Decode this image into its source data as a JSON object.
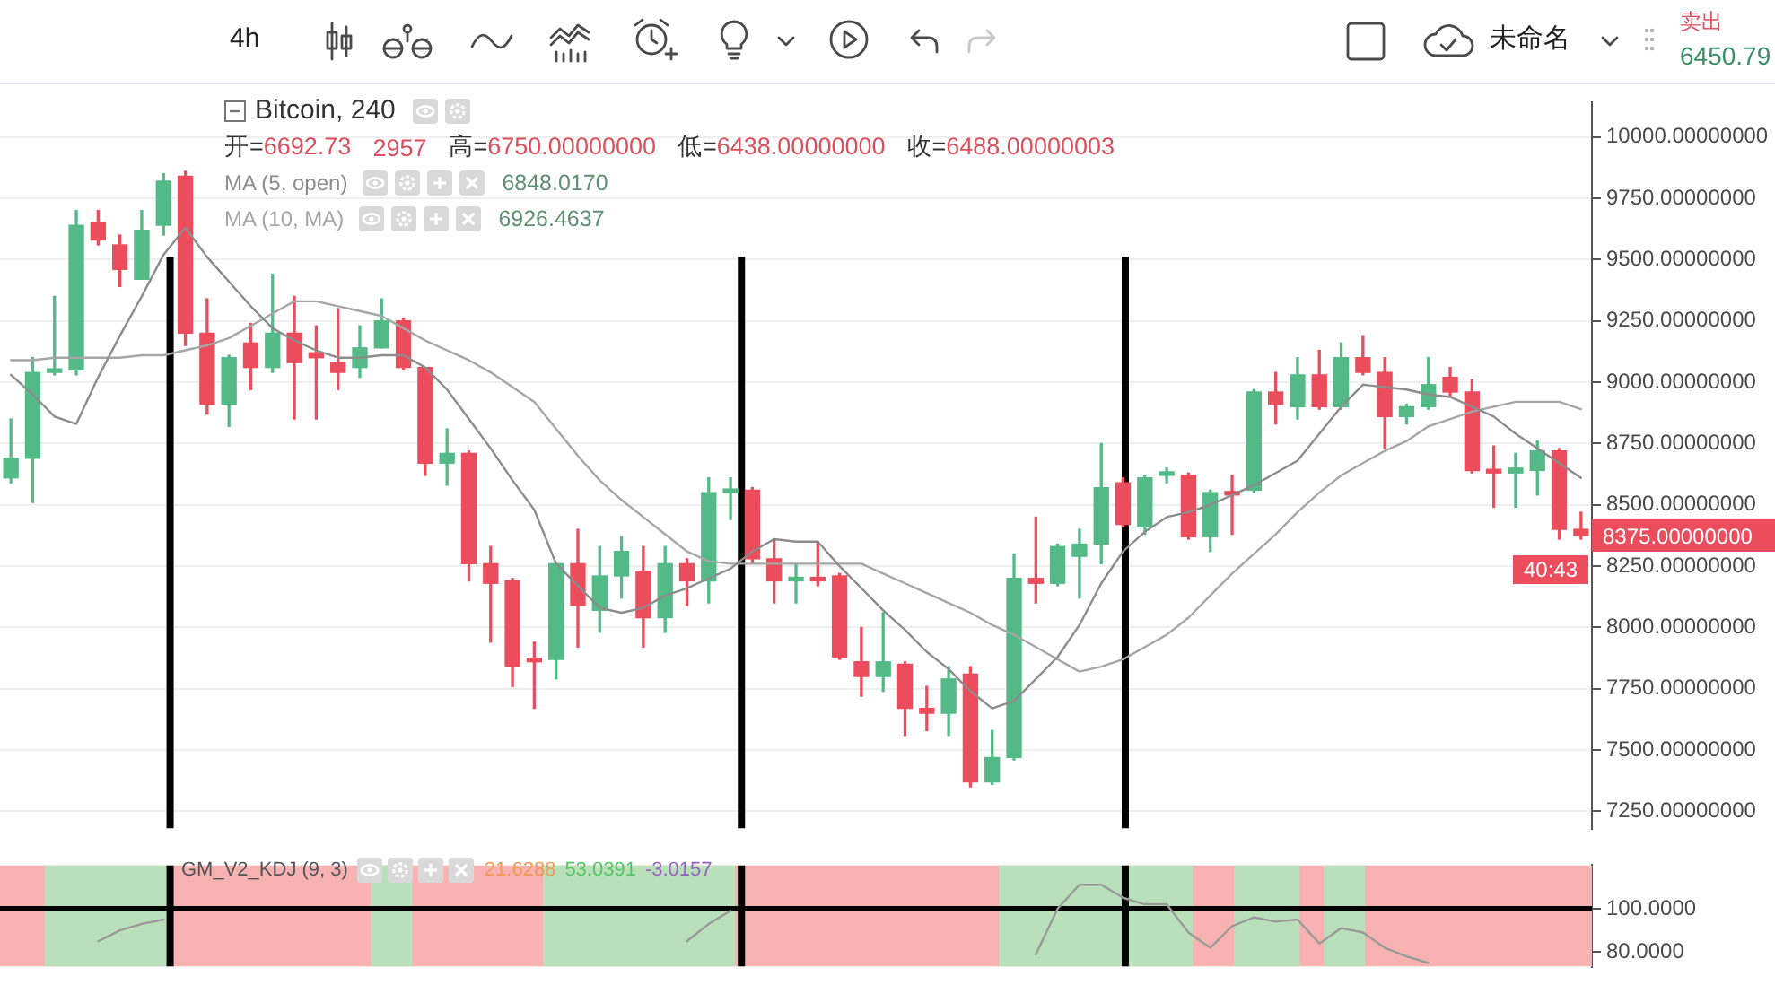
{
  "chart_data": [
    {
      "type": "other",
      "annotations": [
        "4h",
        "未命名",
        "卖出",
        "6450.79"
      ]
    },
    {
      "type": "candlestick",
      "title": "Bitcoin, 240",
      "categories": [
        null,
        null,
        null,
        null,
        null,
        null,
        null,
        null,
        null,
        null,
        null,
        null,
        null,
        null,
        null,
        null,
        null,
        null,
        null,
        null,
        null,
        null,
        null,
        null,
        null,
        null,
        null,
        null,
        null,
        null,
        null,
        null,
        null,
        null,
        null,
        null,
        null,
        null,
        null,
        null,
        null,
        null,
        null,
        null,
        null,
        null,
        null,
        null,
        null,
        null,
        null,
        null,
        null,
        null,
        null,
        null,
        null,
        null,
        null,
        null,
        null,
        null,
        null,
        null,
        null,
        null,
        null,
        null,
        null,
        null,
        null,
        null,
        null
      ],
      "ohlc": [
        [
          8610,
          8850,
          8590,
          8690
        ],
        [
          8690,
          9100,
          8510,
          9040
        ],
        [
          9040,
          9350,
          9030,
          9050
        ],
        [
          9050,
          9700,
          9030,
          9640
        ],
        [
          9650,
          9700,
          9560,
          9580
        ],
        [
          9560,
          9600,
          9390,
          9460
        ],
        [
          9420,
          9700,
          9420,
          9620
        ],
        [
          9640,
          9850,
          9600,
          9820
        ],
        [
          9840,
          9860,
          9150,
          9200
        ],
        [
          9200,
          9340,
          8870,
          8910
        ],
        [
          8910,
          9110,
          8820,
          9100
        ],
        [
          9160,
          9240,
          8970,
          9060
        ],
        [
          9060,
          9440,
          9040,
          9200
        ],
        [
          9200,
          9350,
          8850,
          9080
        ],
        [
          9120,
          9230,
          8850,
          9100
        ],
        [
          9080,
          9300,
          8970,
          9040
        ],
        [
          9060,
          9230,
          9020,
          9140
        ],
        [
          9140,
          9340,
          9140,
          9250
        ],
        [
          9250,
          9260,
          9050,
          9060
        ],
        [
          9060,
          9060,
          8620,
          8670
        ],
        [
          8670,
          8810,
          8580,
          8710
        ],
        [
          8710,
          8720,
          8190,
          8260
        ],
        [
          8260,
          8330,
          7940,
          8180
        ],
        [
          8190,
          8200,
          7760,
          7840
        ],
        [
          7870,
          7940,
          7670,
          7860
        ],
        [
          7870,
          8260,
          7790,
          8260
        ],
        [
          8260,
          8400,
          7920,
          8090
        ],
        [
          8070,
          8330,
          7980,
          8210
        ],
        [
          8210,
          8370,
          8120,
          8310
        ],
        [
          8230,
          8330,
          7920,
          8040
        ],
        [
          8040,
          8330,
          7980,
          8260
        ],
        [
          8260,
          8280,
          8090,
          8190
        ],
        [
          8190,
          8610,
          8100,
          8550
        ],
        [
          8550,
          8610,
          8440,
          8560
        ],
        [
          8560,
          8570,
          8260,
          8280
        ],
        [
          8280,
          8360,
          8100,
          8190
        ],
        [
          8190,
          8260,
          8100,
          8200
        ],
        [
          8200,
          8350,
          8170,
          8190
        ],
        [
          8210,
          8220,
          7870,
          7880
        ],
        [
          7860,
          8000,
          7720,
          7800
        ],
        [
          7800,
          8060,
          7740,
          7860
        ],
        [
          7850,
          7860,
          7560,
          7670
        ],
        [
          7670,
          7760,
          7580,
          7650
        ],
        [
          7650,
          7840,
          7560,
          7790
        ],
        [
          7810,
          7840,
          7350,
          7370
        ],
        [
          7370,
          7580,
          7360,
          7470
        ],
        [
          7470,
          8300,
          7460,
          8200
        ],
        [
          8200,
          8450,
          8100,
          8180
        ],
        [
          8180,
          8340,
          8170,
          8330
        ],
        [
          8290,
          8400,
          8120,
          8340
        ],
        [
          8340,
          8750,
          8260,
          8570
        ],
        [
          8590,
          8610,
          8410,
          8420
        ],
        [
          8410,
          8620,
          8380,
          8610
        ],
        [
          8620,
          8650,
          8590,
          8630
        ],
        [
          8620,
          8630,
          8360,
          8370
        ],
        [
          8370,
          8560,
          8310,
          8550
        ],
        [
          8550,
          8620,
          8380,
          8540
        ],
        [
          8560,
          8970,
          8550,
          8960
        ],
        [
          8960,
          9040,
          8830,
          8910
        ],
        [
          8900,
          9100,
          8850,
          9030
        ],
        [
          9030,
          9130,
          8890,
          8900
        ],
        [
          8900,
          9160,
          8890,
          9100
        ],
        [
          9100,
          9190,
          9030,
          9040
        ],
        [
          9040,
          9100,
          8730,
          8860
        ],
        [
          8860,
          8910,
          8830,
          8900
        ],
        [
          8900,
          9100,
          8890,
          8990
        ],
        [
          9020,
          9060,
          8940,
          8960
        ],
        [
          8960,
          9010,
          8630,
          8640
        ],
        [
          8640,
          8740,
          8490,
          8630
        ],
        [
          8630,
          8710,
          8490,
          8650
        ],
        [
          8640,
          8760,
          8540,
          8720
        ],
        [
          8720,
          8730,
          8360,
          8400
        ],
        [
          8400,
          8470,
          8360,
          8375
        ]
      ],
      "colors": [
        "#53b987",
        "#53b987",
        "#53b987",
        "#53b987",
        "#eb4d5c",
        "#eb4d5c",
        "#53b987",
        "#53b987",
        "#eb4d5c",
        "#eb4d5c",
        "#53b987",
        "#eb4d5c",
        "#53b987",
        "#eb4d5c",
        "#eb4d5c",
        "#eb4d5c",
        "#53b987",
        "#53b987",
        "#eb4d5c",
        "#eb4d5c",
        "#53b987",
        "#eb4d5c",
        "#eb4d5c",
        "#eb4d5c",
        "#eb4d5c",
        "#53b987",
        "#eb4d5c",
        "#53b987",
        "#53b987",
        "#eb4d5c",
        "#53b987",
        "#eb4d5c",
        "#53b987",
        "#53b987",
        "#eb4d5c",
        "#eb4d5c",
        "#53b987",
        "#eb4d5c",
        "#eb4d5c",
        "#eb4d5c",
        "#53b987",
        "#eb4d5c",
        "#eb4d5c",
        "#53b987",
        "#eb4d5c",
        "#53b987",
        "#53b987",
        "#eb4d5c",
        "#53b987",
        "#53b987",
        "#53b987",
        "#eb4d5c",
        "#53b987",
        "#53b987",
        "#eb4d5c",
        "#53b987",
        "#eb4d5c",
        "#53b987",
        "#eb4d5c",
        "#53b987",
        "#eb4d5c",
        "#53b987",
        "#eb4d5c",
        "#eb4d5c",
        "#53b987",
        "#53b987",
        "#eb4d5c",
        "#eb4d5c",
        "#eb4d5c",
        "#53b987",
        "#53b987",
        "#eb4d5c",
        "#eb4d5c"
      ],
      "series": [
        {
          "name": "MA (5, open)",
          "type": "line",
          "color": "#8c8c8c",
          "values": [
            9030,
            8950,
            8860,
            8830,
            9020,
            9190,
            9350,
            9520,
            9630,
            9510,
            9410,
            9310,
            9220,
            9170,
            9130,
            9100,
            9100,
            9110,
            9110,
            9060,
            8970,
            8850,
            8730,
            8600,
            8480,
            8260,
            8170,
            8080,
            8060,
            8080,
            8130,
            8160,
            8200,
            8240,
            8310,
            8360,
            8350,
            8350,
            8250,
            8160,
            8070,
            7990,
            7900,
            7830,
            7740,
            7670,
            7700,
            7790,
            7880,
            8010,
            8180,
            8310,
            8390,
            8450,
            8470,
            8500,
            8540,
            8580,
            8630,
            8680,
            8790,
            8900,
            8990,
            8980,
            8970,
            8950,
            8940,
            8900,
            8860,
            8790,
            8730,
            8670,
            8610
          ]
        },
        {
          "name": "MA (10, MA)",
          "type": "line",
          "color": "#a6a6a6",
          "values": [
            9090,
            9090,
            9100,
            9100,
            9100,
            9100,
            9110,
            9110,
            9130,
            9150,
            9180,
            9230,
            9280,
            9330,
            9330,
            9310,
            9290,
            9270,
            9220,
            9170,
            9130,
            9090,
            9040,
            8980,
            8920,
            8810,
            8700,
            8600,
            8520,
            8450,
            8380,
            8310,
            8270,
            8260,
            8260,
            8260,
            8260,
            8260,
            8260,
            8260,
            8220,
            8180,
            8140,
            8100,
            8060,
            8010,
            7970,
            7920,
            7870,
            7820,
            7840,
            7870,
            7920,
            7970,
            8040,
            8130,
            8220,
            8300,
            8380,
            8470,
            8550,
            8620,
            8670,
            8720,
            8760,
            8820,
            8850,
            8880,
            8900,
            8920,
            8920,
            8920,
            8890
          ]
        }
      ],
      "ylim": [
        7180,
        10140
      ],
      "yticks": [
        {
          "value": 7250,
          "label": "7250.00000000"
        },
        {
          "value": 7500,
          "label": "7500.00000000"
        },
        {
          "value": 7750,
          "label": "7750.00000000"
        },
        {
          "value": 8000,
          "label": "8000.00000000"
        },
        {
          "value": 8250,
          "label": "8250.00000000"
        },
        {
          "value": 8500,
          "label": "8500.00000000"
        },
        {
          "value": 8750,
          "label": "8750.00000000"
        },
        {
          "value": 9000,
          "label": "9000.00000000"
        },
        {
          "value": 9250,
          "label": "9250.00000000"
        },
        {
          "value": 9500,
          "label": "9500.00000000"
        },
        {
          "value": 9750,
          "label": "9750.00000000"
        },
        {
          "value": 10000,
          "label": "10000.00000000"
        }
      ],
      "grid": "y",
      "legend": "top left",
      "annotations": [
        "开=6692.73",
        "2957",
        "高=6750.00000000",
        "低=6438.00000000",
        "收=6488.00000003",
        "6848.0170",
        "6926.4637",
        "8375.00000000",
        "40:43"
      ]
    },
    {
      "type": "line",
      "title": "GM_V2_KDJ (9, 3)",
      "categories": [
        null,
        null,
        null,
        null,
        null,
        null,
        null,
        null,
        null,
        null,
        null,
        null,
        null,
        null,
        null,
        null,
        null,
        null,
        null,
        null,
        null,
        null,
        null,
        null,
        null,
        null,
        null,
        null,
        null,
        null,
        null,
        null,
        null,
        null,
        null,
        null,
        null,
        null,
        null,
        null,
        null,
        null,
        null,
        null,
        null,
        null,
        null,
        null,
        null,
        null,
        null,
        null,
        null,
        null,
        null,
        null,
        null,
        null,
        null,
        null,
        null,
        null,
        null,
        null,
        null,
        null,
        null,
        null,
        null,
        null,
        null,
        null,
        null
      ],
      "series": [
        {
          "color": "#9a9a9a",
          "values": [
            null,
            null,
            null,
            null,
            85,
            90,
            93,
            95,
            null,
            null,
            null,
            null,
            null,
            null,
            null,
            null,
            null,
            null,
            null,
            null,
            null,
            null,
            null,
            null,
            null,
            null,
            null,
            null,
            null,
            null,
            null,
            85,
            93,
            99,
            null,
            null,
            null,
            null,
            null,
            null,
            null,
            null,
            null,
            null,
            null,
            null,
            null,
            79,
            100,
            111,
            111,
            105,
            102,
            102,
            89,
            82,
            92,
            96,
            94,
            95,
            84,
            91,
            89,
            82,
            78,
            75,
            null,
            null,
            null,
            null,
            null,
            null,
            null
          ]
        }
      ],
      "ylim": [
        73.3,
        120
      ],
      "yticks": [
        {
          "value": 80,
          "label": "80.0000"
        },
        {
          "value": 100,
          "label": "100.0000"
        }
      ],
      "ref_lines": [
        {
          "axis": "y",
          "value": 100,
          "color": "#000000"
        }
      ],
      "annotations": [
        "21.6288",
        "53.0391",
        "-3.0157"
      ]
    }
  ]
}
